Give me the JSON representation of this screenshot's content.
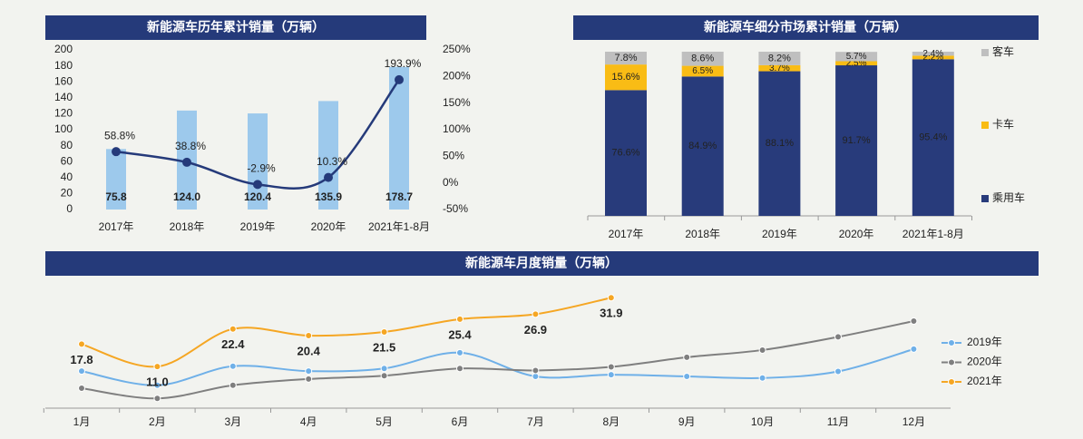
{
  "chart_data": [
    {
      "type": "bar",
      "title": "新能源车历年累计销量（万辆）",
      "categories": [
        "2017年",
        "2018年",
        "2019年",
        "2020年",
        "2021年1-8月"
      ],
      "series": [
        {
          "values": [
            75.8,
            124.0,
            120.4,
            135.9,
            178.7
          ],
          "value_labels": [
            "75.8",
            "124.0",
            "120.4",
            "135.9",
            "178.7"
          ],
          "color": "#9dc9ec"
        },
        {
          "type": "line",
          "axis": "y2",
          "values": [
            58.8,
            38.8,
            -2.9,
            10.3,
            193.9
          ],
          "value_labels": [
            "58.8%",
            "38.8%",
            "-2.9%",
            "10.3%",
            "193.9%"
          ],
          "color": "#253a7a"
        }
      ],
      "ylim": [
        0,
        200
      ],
      "yticks": [
        0,
        20,
        40,
        60,
        80,
        100,
        120,
        140,
        160,
        180,
        200
      ],
      "y2lim": [
        -50,
        250
      ],
      "y2ticks": [
        {
          "value": -50,
          "label": "-50%"
        },
        {
          "value": 0,
          "label": "0%"
        },
        {
          "value": 50,
          "label": "50%"
        },
        {
          "value": 100,
          "label": "100%"
        },
        {
          "value": 150,
          "label": "150%"
        },
        {
          "value": 200,
          "label": "200%"
        },
        {
          "value": 250,
          "label": "250%"
        }
      ]
    },
    {
      "type": "stacked_bar",
      "title": "新能源车细分市场累计销量（万辆）",
      "categories": [
        "2017年",
        "2018年",
        "2019年",
        "2020年",
        "2021年1-8月"
      ],
      "series": [
        {
          "name": "乘用车",
          "color": "#283b7b",
          "values": [
            76.6,
            84.9,
            88.1,
            91.7,
            95.4
          ],
          "value_labels": [
            "76.6%",
            "84.9%",
            "88.1%",
            "91.7%",
            "95.4%"
          ]
        },
        {
          "name": "卡车",
          "color": "#f9bc15",
          "values": [
            15.6,
            6.5,
            3.7,
            2.5,
            2.2
          ],
          "value_labels": [
            "15.6%",
            "6.5%",
            "3.7%",
            "2.5%",
            "2.2%"
          ]
        },
        {
          "name": "客车",
          "color": "#bfbfbf",
          "values": [
            7.8,
            8.6,
            8.2,
            5.7,
            2.4
          ],
          "value_labels": [
            "7.8%",
            "8.6%",
            "8.2%",
            "5.7%",
            "2.4%"
          ]
        }
      ],
      "ylim": [
        0,
        100
      ],
      "legend": "right"
    },
    {
      "type": "line",
      "title": "新能源车月度销量（万辆）",
      "categories": [
        "1月",
        "2月",
        "3月",
        "4月",
        "5月",
        "6月",
        "7月",
        "8月",
        "9月",
        "10月",
        "11月",
        "12月"
      ],
      "series": [
        {
          "name": "2019年",
          "color": "#6fb0e8",
          "values": [
            9.6,
            5.3,
            11.1,
            9.6,
            10.4,
            15.2,
            8.0,
            8.5,
            8.0,
            7.5,
            9.5,
            16.3
          ]
        },
        {
          "name": "2020年",
          "color": "#7f7f7f",
          "values": [
            4.4,
            1.3,
            5.3,
            7.2,
            8.2,
            10.4,
            9.8,
            10.9,
            13.8,
            16.0,
            20.0,
            24.8
          ]
        },
        {
          "name": "2021年",
          "color": "#f5a623",
          "values": [
            17.8,
            11.0,
            22.4,
            20.4,
            21.5,
            25.4,
            26.9,
            31.9,
            null,
            null,
            null,
            null
          ],
          "value_labels": [
            "17.8",
            "11.0",
            "22.4",
            "20.4",
            "21.5",
            "25.4",
            "26.9",
            "31.9",
            null,
            null,
            null,
            null
          ]
        }
      ],
      "ylim": [
        0,
        35
      ],
      "legend": "right"
    }
  ]
}
